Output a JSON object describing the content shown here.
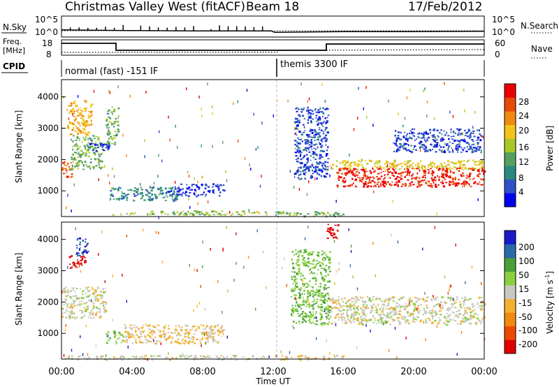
{
  "header": {
    "station": "Christmas Valley West (fitACF)",
    "beam": "Beam 18",
    "date": "17/Feb/2012"
  },
  "noise_panel": {
    "left_label": "N.Sky",
    "right_label": "N.Search",
    "left_ticks": [
      "10^5",
      "10^0"
    ],
    "right_ticks": [
      "10^5",
      "10^0"
    ]
  },
  "freq_panel": {
    "left_label_line1": "Freq.",
    "left_label_line2": "[MHz]",
    "right_label": "Nave",
    "left_ticks": [
      "18",
      "8"
    ],
    "right_ticks": [
      "60",
      "0"
    ]
  },
  "cpid_panel": {
    "label": "CPID",
    "segments": [
      "normal (fast) -151 IF",
      "themis 3300 IF"
    ]
  },
  "x_axis": {
    "label": "Time UT",
    "ticks": [
      "00:00",
      "04:00",
      "08:00",
      "12:00",
      "16:00",
      "20:00",
      "00:00"
    ]
  },
  "legend_power": {
    "title": "Power [dB]",
    "labels": [
      "28",
      "24",
      "20",
      "16",
      "12",
      "8",
      "4"
    ]
  },
  "legend_velocity": {
    "title_main": "Velocity [m s",
    "title_sup": "-1",
    "title_end": "]",
    "labels": [
      "200",
      "100",
      "50",
      "15",
      "-15",
      "-50",
      "-100",
      "-200"
    ]
  },
  "chart_data": [
    {
      "type": "line",
      "title": "",
      "series": [
        {
          "name": "N.Sky",
          "x": [
            0,
            4,
            8,
            11.9,
            12.1,
            16,
            20,
            24
          ],
          "y": [
            1.5,
            1.3,
            1.2,
            1.2,
            0.8,
            1.0,
            1.0,
            1.1
          ]
        },
        {
          "name": "N.Search",
          "x": [
            0,
            12,
            24
          ],
          "y": [
            0.9,
            0.9,
            0.9
          ]
        }
      ]
    },
    {
      "type": "line",
      "series": [
        {
          "name": "Freq.",
          "x": [
            0,
            3.0,
            3.0,
            11.9,
            12.1,
            15.1,
            15.1,
            24
          ],
          "y": [
            17,
            17,
            12,
            12,
            12,
            12,
            17,
            17
          ]
        },
        {
          "name": "Nave",
          "x": [
            0,
            12,
            12.1,
            24
          ],
          "y": [
            15,
            15,
            26,
            30
          ]
        }
      ]
    },
    {
      "type": "heatmap",
      "xlabel": "Time UT",
      "ylabel": "Slant Range [km]",
      "xlim": [
        0,
        24
      ],
      "ylim": [
        180,
        4550
      ],
      "yticks": [
        1000,
        2000,
        3000,
        4000
      ],
      "colorbar": "Power [dB]",
      "clim": [
        0,
        32
      ],
      "regions": [
        {
          "t0": 0.0,
          "t1": 0.6,
          "r0": 1450,
          "r1": 2000,
          "v": 26
        },
        {
          "t0": 0.5,
          "t1": 2.3,
          "r0": 1700,
          "r1": 2800,
          "v": 13
        },
        {
          "t0": 1.3,
          "t1": 2.7,
          "r0": 2300,
          "r1": 2550,
          "v": 5
        },
        {
          "t0": 0.3,
          "t1": 1.7,
          "r0": 2800,
          "r1": 3900,
          "v": 21
        },
        {
          "t0": 2.5,
          "t1": 3.2,
          "r0": 2500,
          "r1": 3700,
          "v": 13
        },
        {
          "t0": 2.7,
          "t1": 6.5,
          "r0": 700,
          "r1": 1150,
          "v": 9
        },
        {
          "t0": 6.0,
          "t1": 9.2,
          "r0": 850,
          "r1": 1250,
          "v": 5
        },
        {
          "t0": 2.8,
          "t1": 11.7,
          "r0": 250,
          "r1": 380,
          "v": 15
        },
        {
          "t0": 12.1,
          "t1": 16.0,
          "r0": 200,
          "r1": 370,
          "v": 13
        },
        {
          "t0": 13.2,
          "t1": 15.1,
          "r0": 1400,
          "r1": 3700,
          "v": 5
        },
        {
          "t0": 15.2,
          "t1": 24.0,
          "r0": 1700,
          "r1": 2000,
          "v": 19
        },
        {
          "t0": 15.6,
          "t1": 24.0,
          "r0": 1150,
          "r1": 1750,
          "v": 29
        },
        {
          "t0": 18.8,
          "t1": 23.8,
          "r0": 2250,
          "r1": 3000,
          "v": 5
        }
      ]
    },
    {
      "type": "heatmap",
      "xlabel": "Time UT",
      "ylabel": "Slant Range [km]",
      "xlim": [
        0,
        24
      ],
      "ylim": [
        180,
        4550
      ],
      "yticks": [
        1000,
        2000,
        3000,
        4000
      ],
      "colorbar": "Velocity [m s-1]",
      "clim": [
        -200,
        200
      ],
      "regions": [
        {
          "t0": 0.0,
          "t1": 2.5,
          "r0": 1500,
          "r1": 2500,
          "v": 0
        },
        {
          "t0": 0.4,
          "t1": 1.3,
          "r0": 3100,
          "r1": 3500,
          "v": -200
        },
        {
          "t0": 0.8,
          "t1": 1.5,
          "r0": 3500,
          "r1": 4100,
          "v": 150
        },
        {
          "t0": 2.5,
          "t1": 3.5,
          "r0": 700,
          "r1": 1100,
          "v": 50
        },
        {
          "t0": 3.5,
          "t1": 9.2,
          "r0": 700,
          "r1": 1300,
          "v": -30
        },
        {
          "t0": 0.0,
          "t1": 11.7,
          "r0": 180,
          "r1": 320,
          "v": 0
        },
        {
          "t0": 12.1,
          "t1": 16.0,
          "r0": 180,
          "r1": 320,
          "v": -30
        },
        {
          "t0": 13.0,
          "t1": 15.2,
          "r0": 1300,
          "r1": 3700,
          "v": 60
        },
        {
          "t0": 15.2,
          "t1": 24.0,
          "r0": 1300,
          "r1": 2200,
          "v": 0
        },
        {
          "t0": 15.0,
          "t1": 15.7,
          "r0": 4000,
          "r1": 4500,
          "v": -200
        }
      ]
    }
  ],
  "colors": {
    "power_scale": [
      "#0000ee",
      "#3050c8",
      "#2a8a80",
      "#55a060",
      "#a8c828",
      "#f2c419",
      "#f08a10",
      "#e84a08",
      "#ee0000"
    ],
    "velocity_scale": [
      "#e00000",
      "#ec4a00",
      "#f08a10",
      "#f4b030",
      "#c8c8c0",
      "#8ad040",
      "#4aa038",
      "#2a6aa8",
      "#1a1ac8"
    ]
  }
}
